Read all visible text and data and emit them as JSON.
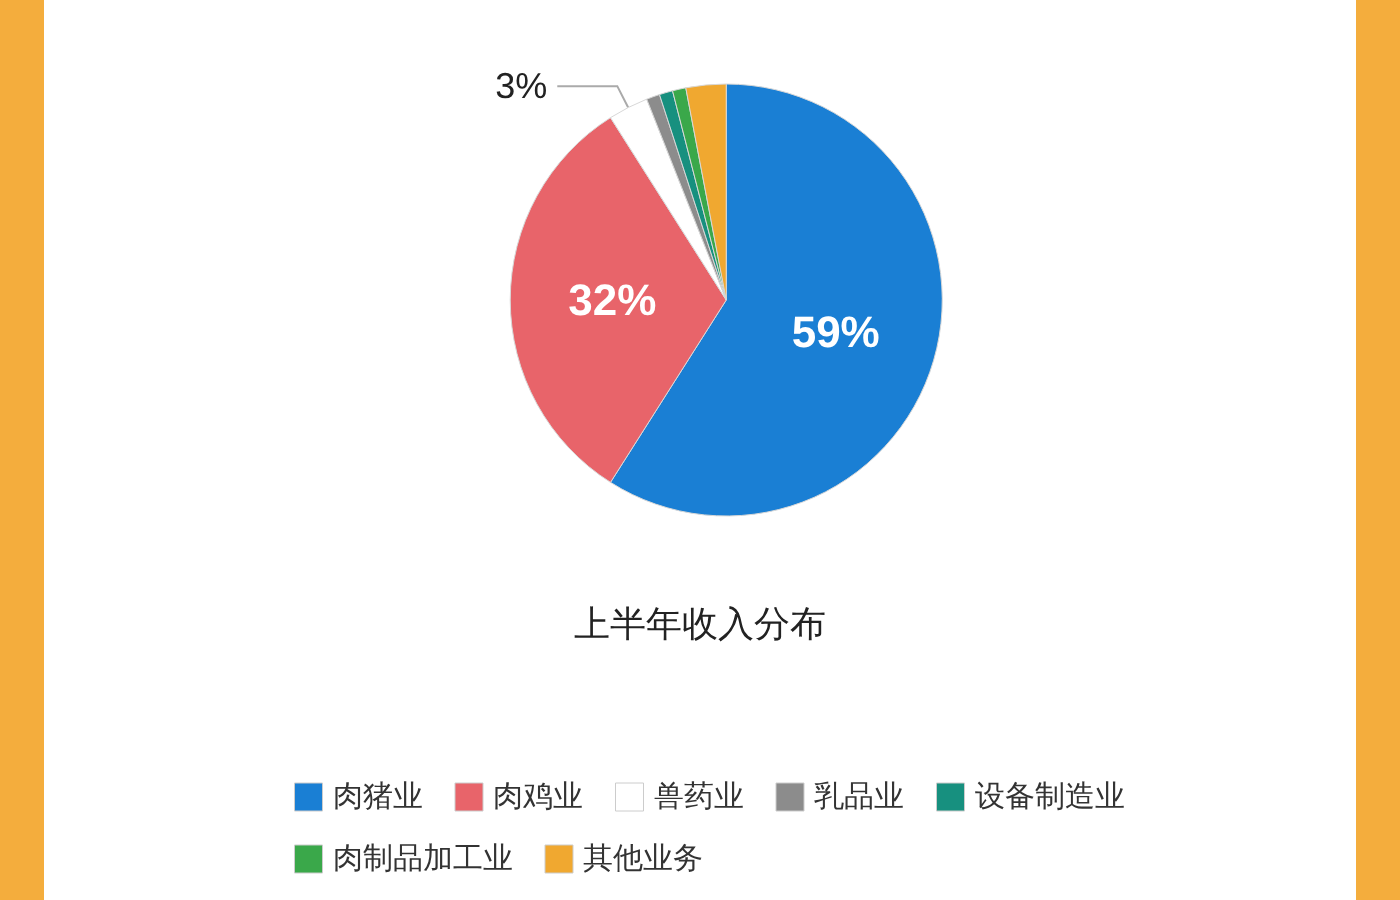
{
  "chart_data": {
    "type": "pie",
    "title": "上半年收入分布",
    "categories": [
      "肉猪业",
      "肉鸡业",
      "兽药业",
      "乳品业",
      "设备制造业",
      "肉制品加工业",
      "其他业务"
    ],
    "values": [
      59,
      32,
      3,
      1,
      1,
      1,
      3
    ],
    "value_labels": [
      "59%",
      "32%",
      "3%",
      null,
      null,
      null,
      null
    ],
    "colors": [
      "#1a7fd4",
      "#e8646a",
      "#ffffff",
      "#8c8c8c",
      "#17907f",
      "#3aa84a",
      "#f0a830"
    ],
    "legend": "bottom"
  }
}
